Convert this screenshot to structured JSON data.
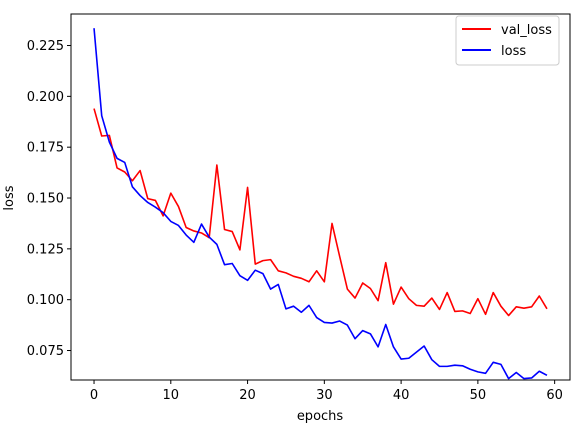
{
  "chart_data": {
    "type": "line",
    "title": "",
    "xlabel": "epochs",
    "ylabel": "loss",
    "xlim": [
      -3,
      62
    ],
    "ylim": [
      0.0605,
      0.2405
    ],
    "xticks": [
      0,
      10,
      20,
      30,
      40,
      50,
      60
    ],
    "yticks": [
      0.075,
      0.1,
      0.125,
      0.15,
      0.175,
      0.2,
      0.225
    ],
    "ytick_labels": [
      "0.075",
      "0.100",
      "0.125",
      "0.150",
      "0.175",
      "0.200",
      "0.225"
    ],
    "grid": false,
    "legend": "top-right",
    "series": [
      {
        "name": "val_loss",
        "color": "#ff0000",
        "x": [
          0,
          1,
          2,
          3,
          4,
          5,
          6,
          7,
          8,
          9,
          10,
          11,
          12,
          13,
          14,
          15,
          16,
          17,
          18,
          19,
          20,
          21,
          22,
          23,
          24,
          25,
          26,
          27,
          28,
          29,
          30,
          31,
          32,
          33,
          34,
          35,
          36,
          37,
          38,
          39,
          40,
          41,
          42,
          43,
          44,
          45,
          46,
          47,
          48,
          49,
          50,
          51,
          52,
          53,
          54,
          55,
          56,
          57,
          58,
          59
        ],
        "values": [
          0.194,
          0.1805,
          0.1808,
          0.1648,
          0.1628,
          0.1585,
          0.1635,
          0.1497,
          0.1488,
          0.1412,
          0.1524,
          0.1458,
          0.1355,
          0.1338,
          0.1328,
          0.1305,
          0.1662,
          0.1345,
          0.1335,
          0.1245,
          0.1552,
          0.1175,
          0.1192,
          0.1197,
          0.1142,
          0.1132,
          0.1115,
          0.1105,
          0.1088,
          0.1142,
          0.1088,
          0.1375,
          0.1212,
          0.1052,
          0.1008,
          0.1082,
          0.1055,
          0.0995,
          0.1182,
          0.0978,
          0.1062,
          0.1005,
          0.0972,
          0.0968,
          0.1008,
          0.0952,
          0.1035,
          0.0942,
          0.0945,
          0.0932,
          0.1005,
          0.0928,
          0.1035,
          0.0968,
          0.0922,
          0.0965,
          0.0958,
          0.0965,
          0.1018,
          0.0955
        ]
      },
      {
        "name": "loss",
        "color": "#0000ff",
        "x": [
          0,
          1,
          2,
          3,
          4,
          5,
          6,
          7,
          8,
          9,
          10,
          11,
          12,
          13,
          14,
          15,
          16,
          17,
          18,
          19,
          20,
          21,
          22,
          23,
          24,
          25,
          26,
          27,
          28,
          29,
          30,
          31,
          32,
          33,
          34,
          35,
          36,
          37,
          38,
          39,
          40,
          41,
          42,
          43,
          44,
          45,
          46,
          47,
          48,
          49,
          50,
          51,
          52,
          53,
          54,
          55,
          56,
          57,
          58,
          59
        ],
        "values": [
          0.2335,
          0.1905,
          0.1775,
          0.1695,
          0.1675,
          0.1555,
          0.1512,
          0.1478,
          0.1455,
          0.1428,
          0.1385,
          0.1365,
          0.1318,
          0.1282,
          0.1372,
          0.1308,
          0.1272,
          0.1172,
          0.1178,
          0.1118,
          0.1095,
          0.1145,
          0.1128,
          0.1052,
          0.1075,
          0.0955,
          0.0968,
          0.0938,
          0.0972,
          0.0912,
          0.0888,
          0.0885,
          0.0895,
          0.0875,
          0.0808,
          0.0848,
          0.0832,
          0.0768,
          0.0878,
          0.0768,
          0.0708,
          0.0712,
          0.0742,
          0.0772,
          0.0705,
          0.0672,
          0.0672,
          0.0678,
          0.0675,
          0.0658,
          0.0645,
          0.0638,
          0.0692,
          0.0682,
          0.0612,
          0.0642,
          0.0612,
          0.0615,
          0.0648,
          0.0628
        ]
      }
    ]
  }
}
